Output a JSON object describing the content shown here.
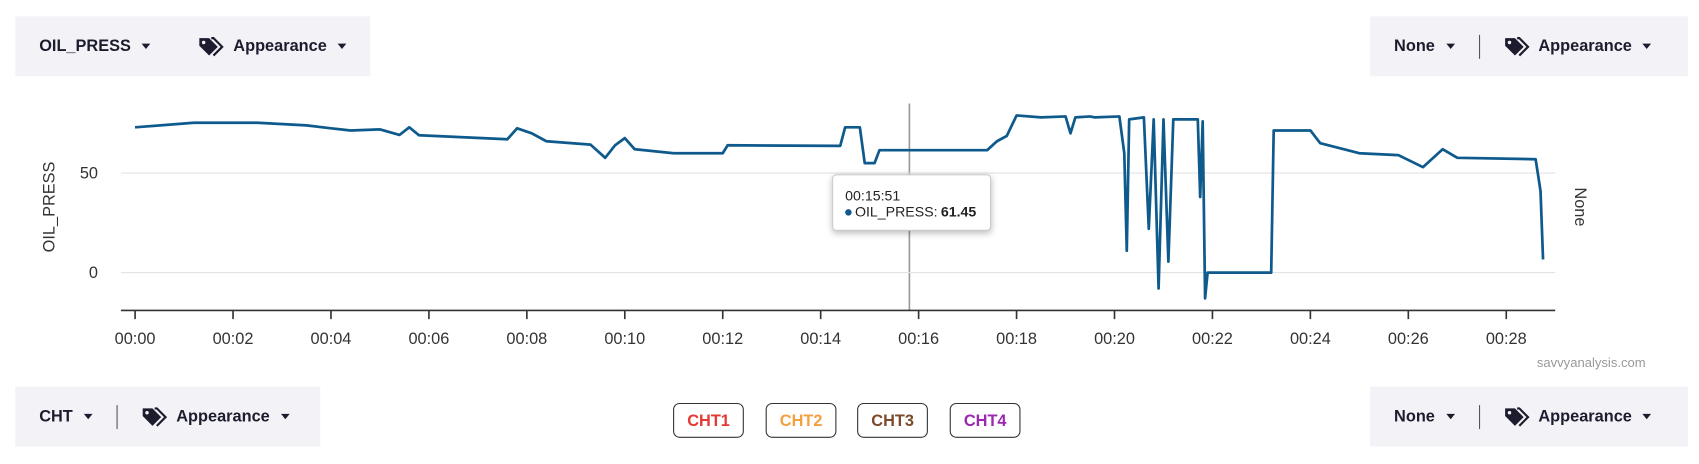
{
  "controls": {
    "top_left": {
      "field": "OIL_PRESS",
      "appearance": "Appearance"
    },
    "top_right": {
      "field": "None",
      "appearance": "Appearance"
    },
    "bottom_left": {
      "field": "CHT",
      "appearance": "Appearance"
    },
    "bottom_right": {
      "field": "None",
      "appearance": "Appearance"
    }
  },
  "series_buttons": [
    {
      "label": "CHT1",
      "color": "#e53935"
    },
    {
      "label": "CHT2",
      "color": "#f5a040"
    },
    {
      "label": "CHT3",
      "color": "#7b4a2a"
    },
    {
      "label": "CHT4",
      "color": "#9c27b0"
    }
  ],
  "watermark": "savvyanalysis.com",
  "chart_data": {
    "type": "line",
    "y_label": "OIL_PRESS",
    "y2_label": "None",
    "xlim": [
      -0.29,
      29.0
    ],
    "ylim": [
      -19,
      85
    ],
    "xticks": [
      {
        "value": 0,
        "label": "00:00"
      },
      {
        "value": 2,
        "label": "00:02"
      },
      {
        "value": 4,
        "label": "00:04"
      },
      {
        "value": 6,
        "label": "00:06"
      },
      {
        "value": 8,
        "label": "00:08"
      },
      {
        "value": 10,
        "label": "00:10"
      },
      {
        "value": 12,
        "label": "00:12"
      },
      {
        "value": 14,
        "label": "00:14"
      },
      {
        "value": 16,
        "label": "00:16"
      },
      {
        "value": 18,
        "label": "00:18"
      },
      {
        "value": 20,
        "label": "00:20"
      },
      {
        "value": 22,
        "label": "00:22"
      },
      {
        "value": 24,
        "label": "00:24"
      },
      {
        "value": 26,
        "label": "00:26"
      },
      {
        "value": 28,
        "label": "00:28"
      }
    ],
    "yticks": [
      0,
      50
    ],
    "grid": true,
    "x": [
      0,
      1.2,
      2.5,
      3.5,
      4,
      4.4,
      5,
      5.4,
      5.6,
      5.8,
      7.6,
      7.8,
      8.1,
      8.4,
      9.3,
      9.6,
      9.8,
      10,
      10.2,
      11,
      12,
      12.1,
      14.4,
      14.5,
      14.8,
      14.9,
      15.1,
      15.2,
      17.4,
      17.6,
      17.8,
      18,
      18.5,
      19,
      19.1,
      19.2,
      19.5,
      19.6,
      20.1,
      20.2,
      20.25,
      20.3,
      20.6,
      20.7,
      20.8,
      20.9,
      21,
      21.1,
      21.2,
      21.7,
      21.75,
      21.8,
      21.85,
      21.9,
      23.2,
      23.25,
      24,
      24.2,
      25,
      25.8,
      26.3,
      26.7,
      27,
      28.6,
      28.7,
      28.75
    ],
    "series": [
      {
        "color": "#0f5a8c",
        "values": [
          73,
          75.3,
          75.3,
          74,
          72.5,
          71.4,
          72,
          69.2,
          73,
          69,
          67,
          72.5,
          70,
          66,
          64.3,
          57.7,
          64,
          67.6,
          62,
          60,
          60,
          64,
          63.7,
          73,
          73,
          55,
          55,
          61.5,
          61.5,
          66,
          68.7,
          79,
          78,
          78.5,
          70,
          78,
          78.5,
          78,
          78.5,
          60,
          11,
          77,
          78,
          22,
          77,
          -8,
          77,
          5.5,
          77,
          77,
          38,
          76,
          -13,
          0,
          0,
          71.4,
          71.4,
          65,
          60,
          59,
          53,
          62,
          57.7,
          57,
          41,
          6.6
        ]
      }
    ],
    "tooltip": {
      "time": "00:15:51",
      "series": "OIL_PRESS:",
      "value": 61.45
    }
  }
}
